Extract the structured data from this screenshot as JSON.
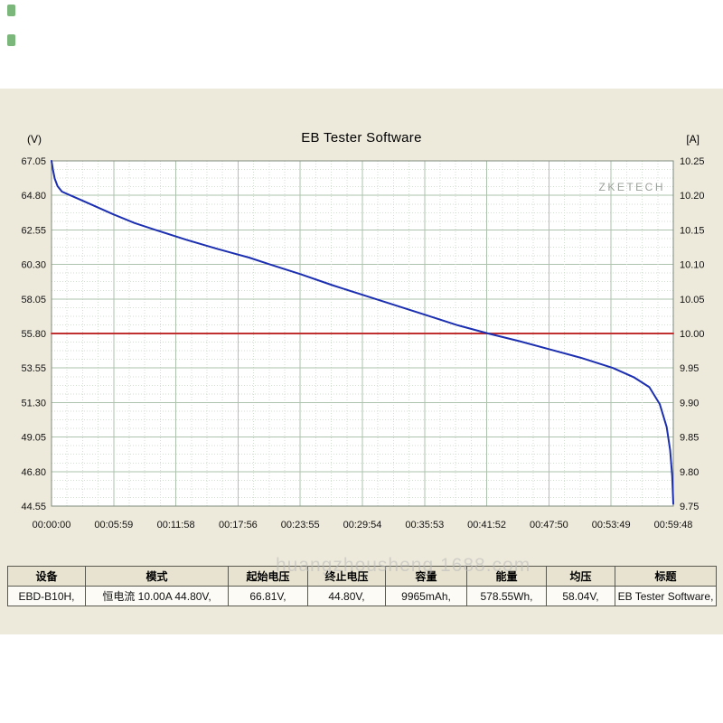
{
  "chart_data": {
    "type": "line",
    "title": "EB Tester Software",
    "watermark": "ZKETECH",
    "x_axis": {
      "label": "time",
      "total_seconds": 3588,
      "ticks": [
        "00:00:00",
        "00:05:59",
        "00:11:58",
        "00:17:56",
        "00:23:55",
        "00:29:54",
        "00:35:53",
        "00:41:52",
        "00:47:50",
        "00:53:49",
        "00:59:48"
      ]
    },
    "left_axis": {
      "unit": "(V)",
      "min": 44.55,
      "max": 67.05,
      "ticks": [
        "67.05",
        "64.80",
        "62.55",
        "60.30",
        "58.05",
        "55.80",
        "53.55",
        "51.30",
        "49.05",
        "46.80",
        "44.55"
      ]
    },
    "right_axis": {
      "unit": "[A]",
      "min": 9.75,
      "max": 10.25,
      "ticks": [
        "10.25",
        "10.20",
        "10.15",
        "10.10",
        "10.05",
        "10.00",
        "9.95",
        "9.90",
        "9.85",
        "9.80",
        "9.75"
      ]
    },
    "grid": {
      "major_divisions": 10,
      "minor_per_major": 4,
      "on": true
    },
    "series": [
      {
        "name": "voltage",
        "axis": "left",
        "color": "#1c2fb0",
        "points": [
          [
            0,
            67.05
          ],
          [
            8,
            66.5
          ],
          [
            18,
            65.9
          ],
          [
            35,
            65.4
          ],
          [
            60,
            65.05
          ],
          [
            100,
            64.85
          ],
          [
            160,
            64.55
          ],
          [
            240,
            64.15
          ],
          [
            360,
            63.55
          ],
          [
            480,
            63.0
          ],
          [
            600,
            62.55
          ],
          [
            780,
            61.9
          ],
          [
            960,
            61.3
          ],
          [
            1140,
            60.75
          ],
          [
            1260,
            60.3
          ],
          [
            1440,
            59.65
          ],
          [
            1620,
            58.95
          ],
          [
            1800,
            58.3
          ],
          [
            1980,
            57.65
          ],
          [
            2160,
            57.0
          ],
          [
            2340,
            56.35
          ],
          [
            2520,
            55.8
          ],
          [
            2700,
            55.3
          ],
          [
            2880,
            54.75
          ],
          [
            3060,
            54.2
          ],
          [
            3240,
            53.55
          ],
          [
            3360,
            52.95
          ],
          [
            3450,
            52.3
          ],
          [
            3510,
            51.2
          ],
          [
            3550,
            49.7
          ],
          [
            3570,
            48.2
          ],
          [
            3582,
            46.5
          ],
          [
            3588,
            44.7
          ]
        ]
      },
      {
        "name": "current",
        "axis": "right",
        "color": "#c03030",
        "points": [
          [
            0,
            10.0
          ],
          [
            3588,
            10.0
          ]
        ]
      }
    ]
  },
  "table": {
    "headers": [
      "设备",
      "模式",
      "起始电压",
      "终止电压",
      "容量",
      "能量",
      "均压",
      "标题"
    ],
    "values": [
      "EBD-B10H,",
      "恒电流 10.00A 44.80V,",
      "66.81V,",
      "44.80V,",
      "9965mAh,",
      "578.55Wh,",
      "58.04V,",
      "EB Tester Software,"
    ]
  },
  "watermark": {
    "text": "huangzhousheng 1688.com"
  }
}
